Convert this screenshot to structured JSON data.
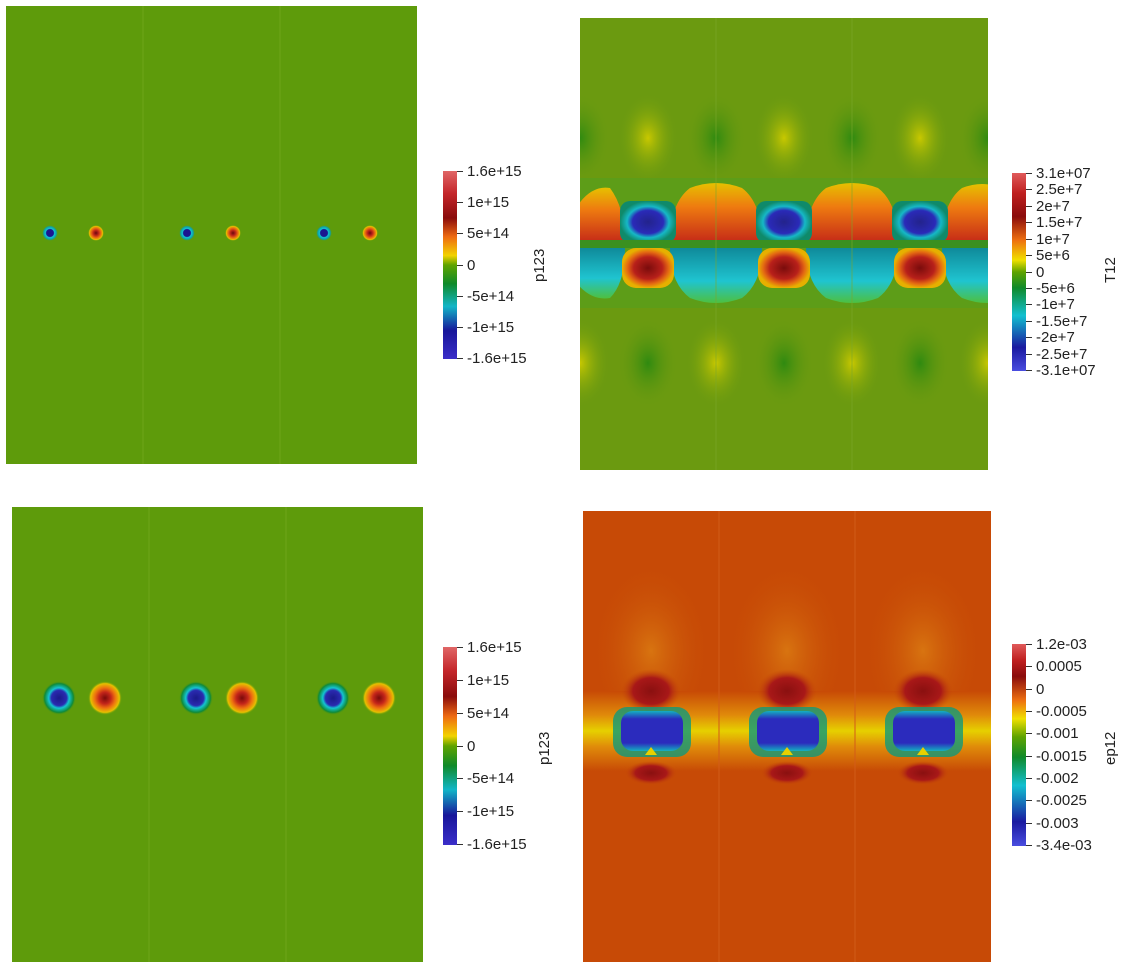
{
  "panels": [
    {
      "id": "top-left",
      "variable": "p123",
      "colorbar": {
        "labels": [
          "1.6e+15",
          "1e+15",
          "5e+14",
          "0",
          "-5e+14",
          "-1e+15",
          "-1.6e+15"
        ],
        "range": [
          -1600000000000000.0,
          1600000000000000.0
        ],
        "colormap": [
          "#3b2ec9",
          "#17169a",
          "#12b6c7",
          "#5fa300",
          "#f2d300",
          "#ee6a12",
          "#c4262a",
          "#e06666"
        ]
      },
      "background_color": "#5e9b0b"
    },
    {
      "id": "top-right",
      "variable": "T12",
      "colorbar": {
        "labels": [
          "3.1e+07",
          "2.5e+7",
          "2e+7",
          "1.5e+7",
          "1e+7",
          "5e+6",
          "0",
          "-5e+6",
          "-1e+7",
          "-1.5e+7",
          "-2e+7",
          "-2.5e+7",
          "-3.1e+07"
        ],
        "range": [
          -31000000.0,
          31000000.0
        ],
        "colormap": [
          "#4a4de0",
          "#1a1aa0",
          "#12c0d0",
          "#5fa300",
          "#f0e000",
          "#ee7010",
          "#c02020",
          "#e05a5a"
        ]
      },
      "background_color": "#6b9a10"
    },
    {
      "id": "bottom-left",
      "variable": "p123",
      "colorbar": {
        "labels": [
          "1.6e+15",
          "1e+15",
          "5e+14",
          "0",
          "-5e+14",
          "-1e+15",
          "-1.6e+15"
        ],
        "range": [
          -1600000000000000.0,
          1600000000000000.0
        ],
        "colormap": [
          "#3b2ec9",
          "#17169a",
          "#12b6c7",
          "#5fa300",
          "#f2d300",
          "#ee6a12",
          "#c4262a",
          "#e06666"
        ]
      },
      "background_color": "#5e9b0b"
    },
    {
      "id": "bottom-right",
      "variable": "ep12",
      "colorbar": {
        "labels": [
          "1.2e-03",
          "0.0005",
          "0",
          "-0.0005",
          "-0.001",
          "-0.0015",
          "-0.002",
          "-0.0025",
          "-0.003",
          "-3.4e-03"
        ],
        "range": [
          -0.0034,
          0.0012
        ],
        "colormap": [
          "#4a4de0",
          "#1a1aa0",
          "#12c0d0",
          "#5fa300",
          "#f0e000",
          "#ee7010",
          "#c02020",
          "#e05a5a"
        ]
      },
      "background_color": "#c74a06"
    }
  ]
}
